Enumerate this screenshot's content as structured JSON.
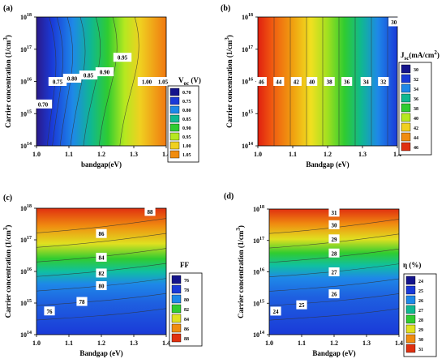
{
  "figure": {
    "background": "#ffffff"
  },
  "chart_data": [
    {
      "panel": "(a)",
      "type": "heatmap",
      "xlabel": "bandgap(eV)",
      "ylabel": "Carrier concentration (1/cm",
      "ylabel_sup": "3",
      "ylabel_close": ")",
      "x_ticks": [
        "1.0",
        "1.1",
        "1.2",
        "1.3",
        "1.4"
      ],
      "y_ticks": [
        {
          "base": "10",
          "exp": "14"
        },
        {
          "base": "10",
          "exp": "15"
        },
        {
          "base": "10",
          "exp": "16"
        },
        {
          "base": "10",
          "exp": "17"
        },
        {
          "base": "10",
          "exp": "18"
        }
      ],
      "xlim": [
        1.0,
        1.4
      ],
      "ylim_log10": [
        14,
        18
      ],
      "legend_title_main": "V",
      "legend_title_sub": "oc",
      "legend_title_unit": " (V)",
      "legend_levels": [
        "0.70",
        "0.75",
        "0.80",
        "0.85",
        "0.90",
        "0.95",
        "1.00",
        "1.05"
      ],
      "legend_colors": [
        "#14148c",
        "#1a3ad8",
        "#1e88e8",
        "#10b890",
        "#30cc30",
        "#b6e820",
        "#f0d020",
        "#f08c10"
      ],
      "contour_labels": [
        {
          "text": "0.70",
          "x": 1.02,
          "y": 15.3
        },
        {
          "text": "0.75",
          "x": 1.065,
          "y": 16.0
        },
        {
          "text": "0.80",
          "x": 1.11,
          "y": 16.1
        },
        {
          "text": "0.85",
          "x": 1.16,
          "y": 16.2
        },
        {
          "text": "0.90",
          "x": 1.21,
          "y": 16.3
        },
        {
          "text": "0.95",
          "x": 1.265,
          "y": 16.75
        },
        {
          "text": "1.00",
          "x": 1.34,
          "y": 16.0
        },
        {
          "text": "1.05",
          "x": 1.39,
          "y": 16.0
        }
      ]
    },
    {
      "panel": "(b)",
      "type": "heatmap",
      "xlabel": "Bandgap (eV)",
      "ylabel": "Carrier concentration (1/cm",
      "ylabel_sup": "3",
      "ylabel_close": ")",
      "x_ticks": [
        "1.0",
        "1.1",
        "1.2",
        "1.3",
        "1.4"
      ],
      "y_ticks": [
        {
          "base": "10",
          "exp": "14"
        },
        {
          "base": "10",
          "exp": "15"
        },
        {
          "base": "10",
          "exp": "16"
        },
        {
          "base": "10",
          "exp": "17"
        },
        {
          "base": "10",
          "exp": "18"
        }
      ],
      "xlim": [
        1.0,
        1.4
      ],
      "ylim_log10": [
        14,
        18
      ],
      "legend_title_main": "J",
      "legend_title_sub": "sc",
      "legend_title_unit": "(mA/cm",
      "legend_title_sup": "2",
      "legend_title_close": ")",
      "legend_levels": [
        "30",
        "32",
        "34",
        "36",
        "38",
        "40",
        "42",
        "44",
        "46"
      ],
      "legend_colors": [
        "#14148c",
        "#1a3ad8",
        "#1e88e8",
        "#10b890",
        "#30cc30",
        "#b6e820",
        "#f0d020",
        "#f08c10",
        "#e03010"
      ],
      "contour_labels": [
        {
          "text": "46",
          "x": 1.01,
          "y": 16.0
        },
        {
          "text": "44",
          "x": 1.06,
          "y": 16.0
        },
        {
          "text": "42",
          "x": 1.11,
          "y": 16.0
        },
        {
          "text": "40",
          "x": 1.155,
          "y": 16.0
        },
        {
          "text": "38",
          "x": 1.205,
          "y": 16.0
        },
        {
          "text": "36",
          "x": 1.255,
          "y": 16.0
        },
        {
          "text": "34",
          "x": 1.31,
          "y": 16.0
        },
        {
          "text": "32",
          "x": 1.36,
          "y": 16.0
        },
        {
          "text": "30",
          "x": 1.39,
          "y": 17.85
        }
      ]
    },
    {
      "panel": "(c)",
      "type": "heatmap",
      "xlabel": "Bandgap (eV)",
      "ylabel": "Carrier concentration (1/cm",
      "ylabel_sup": "3",
      "ylabel_close": ")",
      "x_ticks": [
        "1.0",
        "1.1",
        "1.2",
        "1.3",
        "1.4"
      ],
      "y_ticks": [
        {
          "base": "10",
          "exp": "14"
        },
        {
          "base": "10",
          "exp": "15"
        },
        {
          "base": "10",
          "exp": "16"
        },
        {
          "base": "10",
          "exp": "17"
        },
        {
          "base": "10",
          "exp": "18"
        }
      ],
      "xlim": [
        1.0,
        1.4
      ],
      "ylim_log10": [
        14,
        18
      ],
      "legend_title_main": "FF",
      "legend_levels": [
        "76",
        "78",
        "80",
        "82",
        "84",
        "86",
        "88"
      ],
      "legend_colors": [
        "#14148c",
        "#1a3ad8",
        "#1e88e8",
        "#30cc30",
        "#e0e020",
        "#f08c10",
        "#e03010"
      ],
      "contour_labels": [
        {
          "text": "76",
          "x": 1.04,
          "y": 14.75
        },
        {
          "text": "78",
          "x": 1.14,
          "y": 15.05
        },
        {
          "text": "80",
          "x": 1.2,
          "y": 15.55
        },
        {
          "text": "82",
          "x": 1.2,
          "y": 15.95
        },
        {
          "text": "84",
          "x": 1.2,
          "y": 16.45
        },
        {
          "text": "86",
          "x": 1.2,
          "y": 17.2
        },
        {
          "text": "88",
          "x": 1.35,
          "y": 17.9
        }
      ]
    },
    {
      "panel": "(d)",
      "type": "heatmap",
      "xlabel": "Bandgap (eV)",
      "ylabel": "Carrier concentration (1/cm",
      "ylabel_sup": "3",
      "ylabel_close": ")",
      "x_ticks": [
        "1.0",
        "1.1",
        "1.2",
        "1.3",
        "1.4"
      ],
      "y_ticks": [
        {
          "base": "10",
          "exp": "14"
        },
        {
          "base": "10",
          "exp": "15"
        },
        {
          "base": "10",
          "exp": "16"
        },
        {
          "base": "10",
          "exp": "17"
        },
        {
          "base": "10",
          "exp": "18"
        }
      ],
      "xlim": [
        1.0,
        1.4
      ],
      "ylim_log10": [
        14,
        18
      ],
      "legend_title_main": "η (%)",
      "legend_levels": [
        "24",
        "25",
        "26",
        "27",
        "28",
        "29",
        "30",
        "31"
      ],
      "legend_colors": [
        "#14148c",
        "#1a3ad8",
        "#1e88e8",
        "#10b890",
        "#30cc30",
        "#e0e020",
        "#f08c10",
        "#e03010"
      ],
      "contour_labels": [
        {
          "text": "24",
          "x": 1.02,
          "y": 14.75
        },
        {
          "text": "25",
          "x": 1.1,
          "y": 14.95
        },
        {
          "text": "26",
          "x": 1.2,
          "y": 15.3
        },
        {
          "text": "27",
          "x": 1.2,
          "y": 16.0
        },
        {
          "text": "28",
          "x": 1.2,
          "y": 16.6
        },
        {
          "text": "29",
          "x": 1.2,
          "y": 17.05
        },
        {
          "text": "30",
          "x": 1.2,
          "y": 17.5
        },
        {
          "text": "31",
          "x": 1.2,
          "y": 17.9
        }
      ]
    }
  ]
}
